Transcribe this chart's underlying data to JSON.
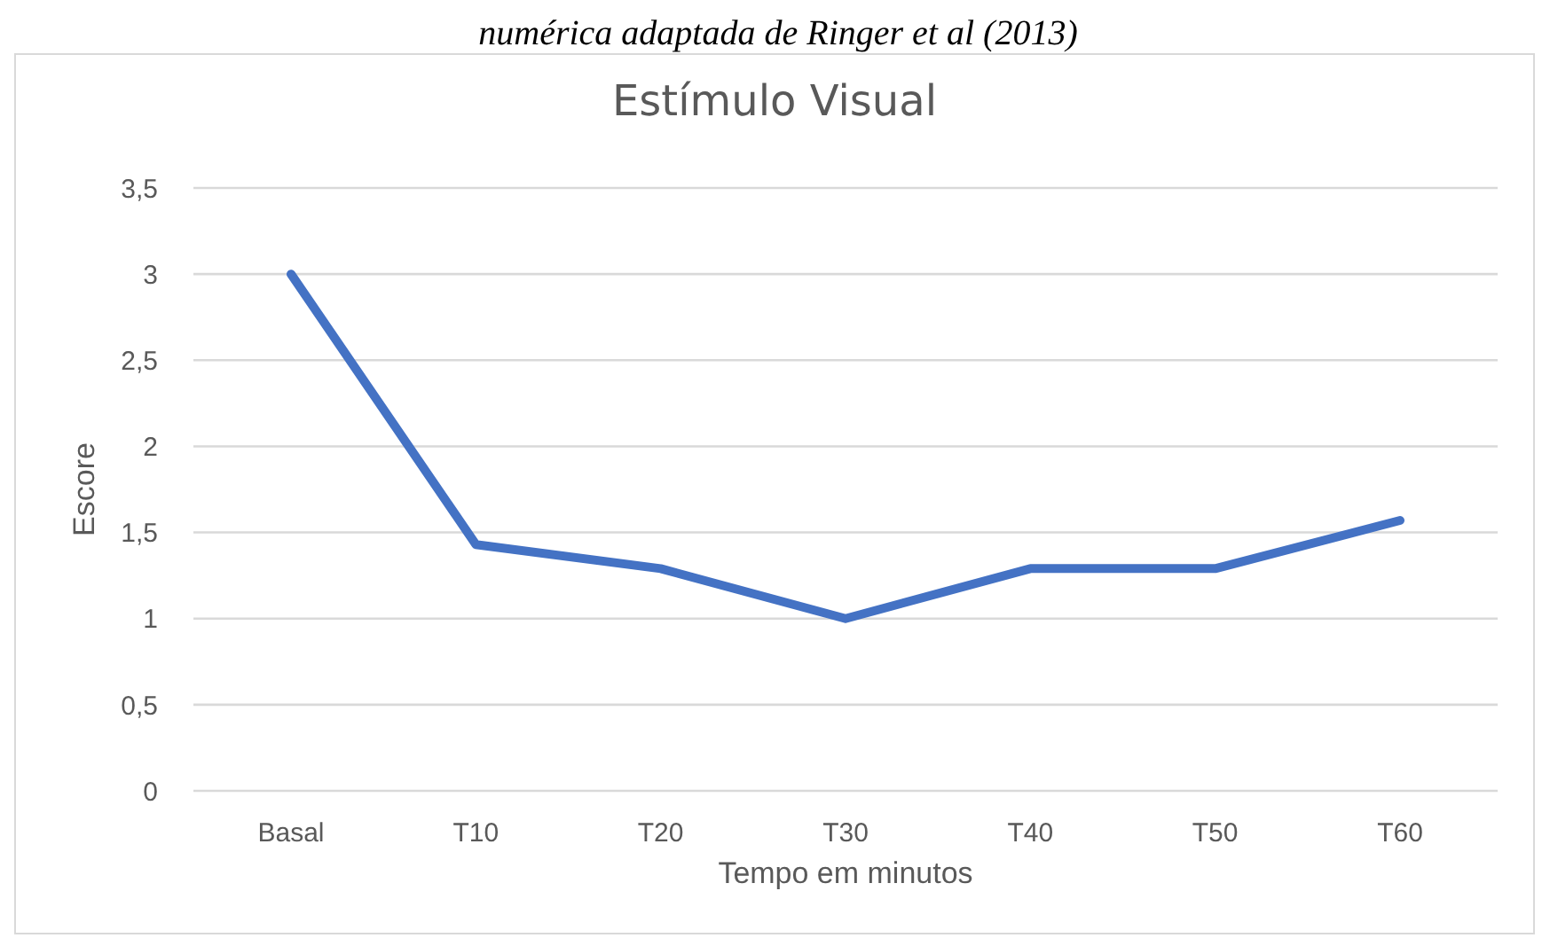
{
  "chart_data": {
    "type": "line",
    "title": "Estímulo Visual",
    "xlabel": "Tempo em minutos",
    "ylabel": "Escore",
    "annotations": [
      "numérica adaptada de Ringer et al (2013)"
    ],
    "categories": [
      "Basal",
      "T10",
      "T20",
      "T30",
      "T40",
      "T50",
      "T60"
    ],
    "series": [
      {
        "color": "#4472c4",
        "values": [
          3,
          1.43,
          1.29,
          1,
          1.29,
          1.29,
          1.57
        ]
      }
    ],
    "ylim": [
      0,
      3.5
    ],
    "yticks": [
      {
        "value": 0,
        "label": "0"
      },
      {
        "value": 0.5,
        "label": "0,5"
      },
      {
        "value": 1,
        "label": "1"
      },
      {
        "value": 1.5,
        "label": "1,5"
      },
      {
        "value": 2,
        "label": "2"
      },
      {
        "value": 2.5,
        "label": "2,5"
      },
      {
        "value": 3,
        "label": "3"
      },
      {
        "value": 3.5,
        "label": "3,5"
      }
    ],
    "grid": "y",
    "legend": false,
    "marker": "none",
    "line_style": "solid"
  }
}
